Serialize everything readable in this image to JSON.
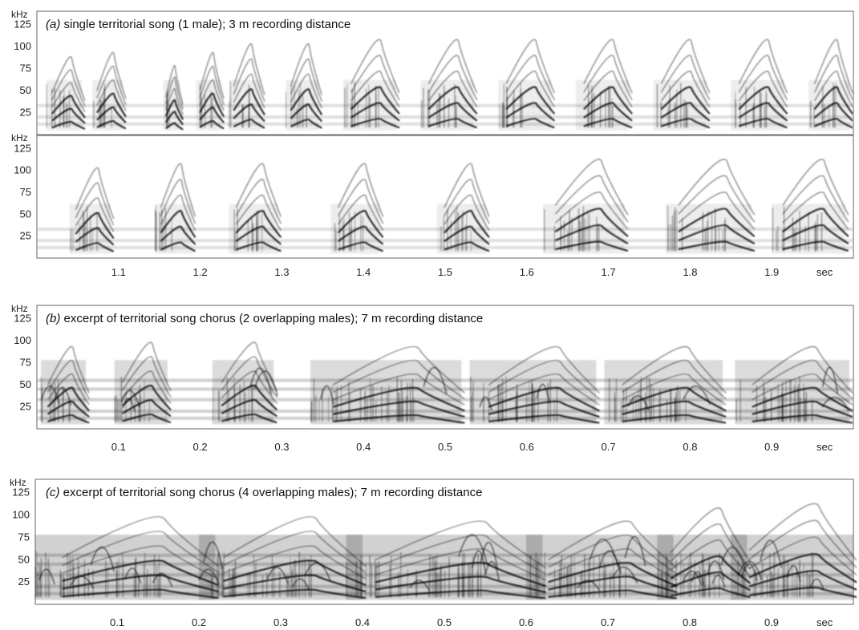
{
  "chart_data": [
    {
      "type": "heatmap",
      "panel": "a",
      "caption_letter": "(a)",
      "caption_text": " single territorial song (1 male); 3 m recording distance",
      "ylabel": "kHz",
      "xlabel": "",
      "yticks": [
        25,
        50,
        75,
        100,
        125
      ],
      "ylim": [
        0,
        140
      ],
      "rows": [
        {
          "xlim": [
            0,
            1.0
          ],
          "xticks": [
            0.1,
            0.2,
            0.3,
            0.4,
            0.5,
            0.6,
            0.7,
            0.8,
            0.9
          ],
          "syllables": [
            {
              "start": 0.012,
              "end": 0.055,
              "peak_khz": 90
            },
            {
              "start": 0.068,
              "end": 0.105,
              "peak_khz": 95
            },
            {
              "start": 0.155,
              "end": 0.175,
              "peak_khz": 80
            },
            {
              "start": 0.195,
              "end": 0.225,
              "peak_khz": 95
            },
            {
              "start": 0.235,
              "end": 0.275,
              "peak_khz": 105
            },
            {
              "start": 0.305,
              "end": 0.345,
              "peak_khz": 105
            },
            {
              "start": 0.375,
              "end": 0.44,
              "peak_khz": 110
            },
            {
              "start": 0.47,
              "end": 0.535,
              "peak_khz": 110
            },
            {
              "start": 0.565,
              "end": 0.63,
              "peak_khz": 110
            },
            {
              "start": 0.66,
              "end": 0.725,
              "peak_khz": 110
            },
            {
              "start": 0.755,
              "end": 0.82,
              "peak_khz": 110
            },
            {
              "start": 0.85,
              "end": 0.915,
              "peak_khz": 110
            },
            {
              "start": 0.945,
              "end": 0.995,
              "peak_khz": 110
            }
          ]
        },
        {
          "xlim": [
            1.0,
            2.0
          ],
          "xticks": [
            1.1,
            1.2,
            1.3,
            1.4,
            1.5,
            1.6,
            1.7,
            1.8,
            1.9
          ],
          "end_unit": "sec",
          "syllables": [
            {
              "start": 1.04,
              "end": 1.09,
              "peak_khz": 105
            },
            {
              "start": 1.145,
              "end": 1.19,
              "peak_khz": 110
            },
            {
              "start": 1.235,
              "end": 1.295,
              "peak_khz": 110
            },
            {
              "start": 1.36,
              "end": 1.42,
              "peak_khz": 110
            },
            {
              "start": 1.49,
              "end": 1.55,
              "peak_khz": 110
            },
            {
              "start": 1.62,
              "end": 1.72,
              "peak_khz": 115
            },
            {
              "start": 1.77,
              "end": 1.875,
              "peak_khz": 115
            },
            {
              "start": 1.9,
              "end": 1.99,
              "peak_khz": 115
            }
          ]
        }
      ]
    },
    {
      "type": "heatmap",
      "panel": "b",
      "caption_letter": "(b)",
      "caption_text": " excerpt of territorial song chorus (2 overlapping males); 7 m recording distance",
      "ylabel": "kHz",
      "xlabel": "",
      "end_unit": "sec",
      "yticks": [
        25,
        50,
        75,
        100,
        125
      ],
      "ylim": [
        0,
        140
      ],
      "xlim": [
        0,
        1.0
      ],
      "xticks": [
        0.1,
        0.2,
        0.3,
        0.4,
        0.5,
        0.6,
        0.7,
        0.8,
        0.9
      ],
      "syllables": [
        {
          "start": 0.005,
          "end": 0.06,
          "peak_khz": 95
        },
        {
          "start": 0.095,
          "end": 0.16,
          "peak_khz": 100
        },
        {
          "start": 0.215,
          "end": 0.29,
          "peak_khz": 100
        },
        {
          "start": 0.335,
          "end": 0.52,
          "peak_khz": 95
        },
        {
          "start": 0.53,
          "end": 0.685,
          "peak_khz": 95
        },
        {
          "start": 0.695,
          "end": 0.84,
          "peak_khz": 95
        },
        {
          "start": 0.855,
          "end": 0.995,
          "peak_khz": 95
        }
      ]
    },
    {
      "type": "heatmap",
      "panel": "c",
      "caption_letter": "(c)",
      "caption_text": " excerpt of territorial song chorus (4 overlapping males); 7 m recording distance",
      "ylabel": "kHz",
      "xlabel": "",
      "end_unit": "sec",
      "yticks": [
        25,
        50,
        75,
        100,
        125
      ],
      "ylim": [
        0,
        140
      ],
      "xlim": [
        0,
        1.0
      ],
      "xticks": [
        0.1,
        0.2,
        0.3,
        0.4,
        0.5,
        0.6,
        0.7,
        0.8,
        0.9
      ],
      "syllables": [
        {
          "start": 0.0,
          "end": 0.22,
          "peak_khz": 100
        },
        {
          "start": 0.2,
          "end": 0.4,
          "peak_khz": 100
        },
        {
          "start": 0.38,
          "end": 0.62,
          "peak_khz": 95
        },
        {
          "start": 0.6,
          "end": 0.78,
          "peak_khz": 95
        },
        {
          "start": 0.76,
          "end": 0.87,
          "peak_khz": 110
        },
        {
          "start": 0.85,
          "end": 1.0,
          "peak_khz": 115
        }
      ]
    }
  ]
}
